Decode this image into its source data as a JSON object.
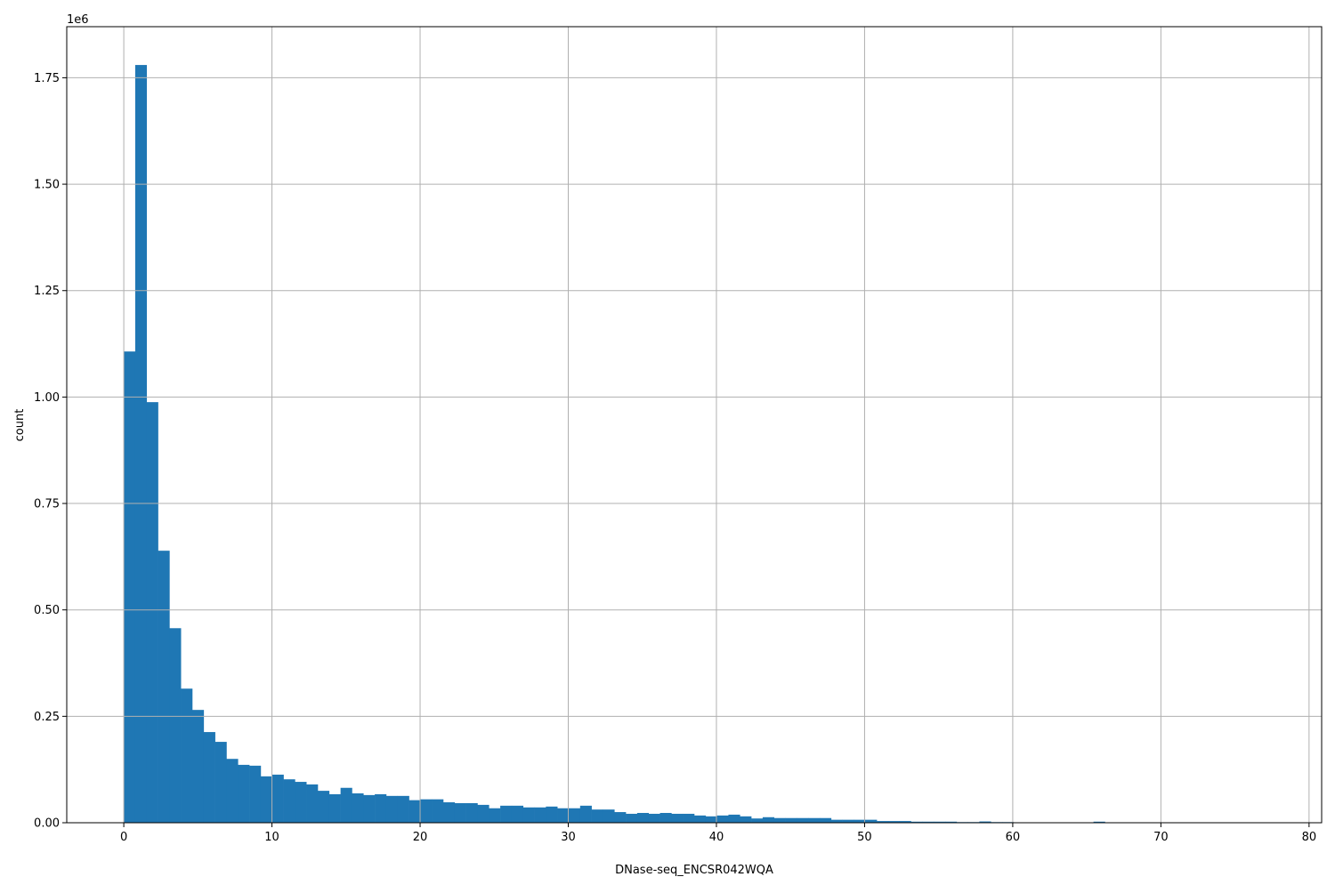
{
  "chart_data": {
    "type": "bar",
    "histogram": true,
    "xlabel": "DNase-seq_ENCSR042WQA",
    "ylabel": "count",
    "y_scale_label": "1e6",
    "bin_range": [
      0,
      77
    ],
    "bins": 100,
    "xlim": [
      -3.85,
      80.85
    ],
    "ylim": [
      0,
      1870000
    ],
    "xticks": [
      0,
      10,
      20,
      30,
      40,
      50,
      60,
      70,
      80
    ],
    "xtick_labels": [
      "0",
      "10",
      "20",
      "30",
      "40",
      "50",
      "60",
      "70",
      "80"
    ],
    "yticks": [
      0,
      250000,
      500000,
      750000,
      1000000,
      1250000,
      1500000,
      1750000
    ],
    "ytick_labels": [
      "0.00",
      "0.25",
      "0.50",
      "0.75",
      "1.00",
      "1.25",
      "1.50",
      "1.75"
    ],
    "grid": true,
    "bar_color": "#1f77b4",
    "values": [
      1107000,
      1780000,
      988000,
      639000,
      457000,
      315000,
      265000,
      213000,
      190000,
      150000,
      136000,
      134000,
      109000,
      113000,
      102000,
      96000,
      90000,
      75000,
      67000,
      82000,
      69000,
      65000,
      67000,
      63000,
      63000,
      53000,
      55000,
      55000,
      48000,
      46000,
      46000,
      42000,
      34000,
      40000,
      40000,
      36000,
      36000,
      38000,
      34000,
      34000,
      40000,
      31000,
      31000,
      25000,
      21000,
      23000,
      21000,
      23000,
      21000,
      21000,
      17000,
      15000,
      17000,
      19000,
      15000,
      10000,
      13000,
      11000,
      11000,
      11000,
      11000,
      11000,
      7000,
      7000,
      7000,
      7000,
      4000,
      4000,
      4000,
      2500,
      2500,
      2500,
      2500,
      1500,
      1500,
      3000,
      1500,
      1500,
      1000,
      1000,
      500,
      500,
      500,
      300,
      300,
      2500,
      300,
      200,
      200,
      200,
      100,
      100,
      100,
      100,
      100,
      100,
      100,
      100,
      100,
      100
    ]
  }
}
